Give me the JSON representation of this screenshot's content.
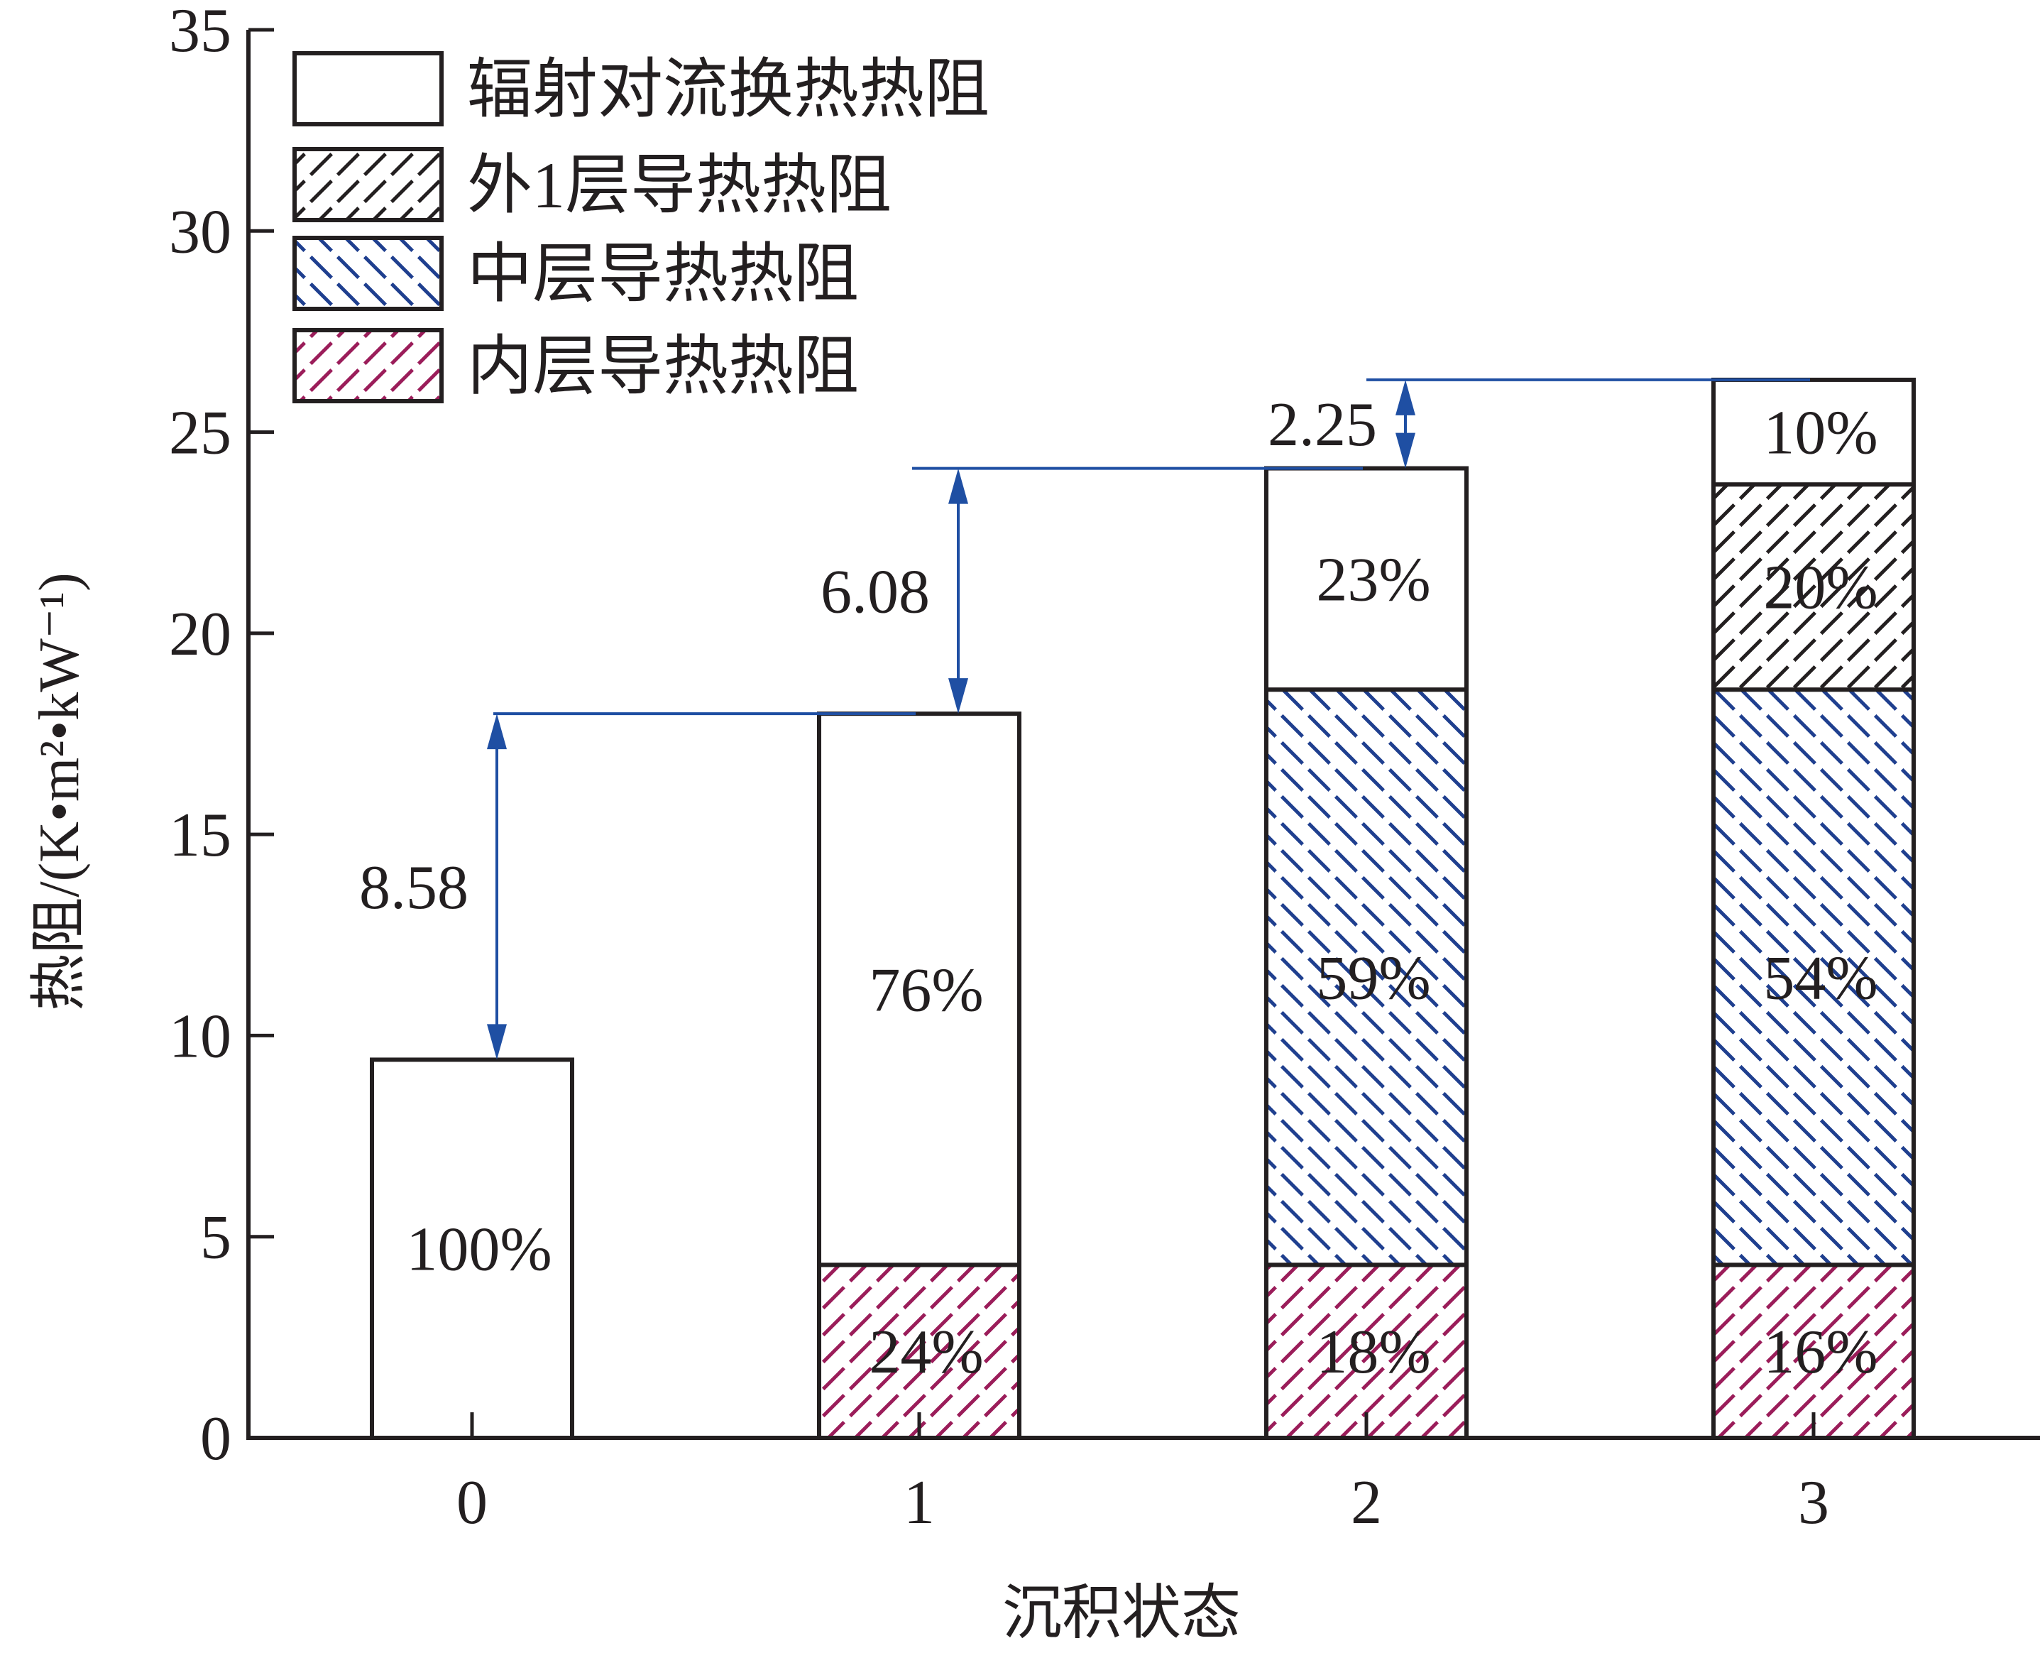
{
  "chart_data": {
    "type": "bar",
    "stacked": true,
    "categories": [
      "0",
      "1",
      "2",
      "3"
    ],
    "xlabel": "沉积状态",
    "ylabel": "热阻/(K•m²•kW⁻¹)",
    "ylim": [
      0,
      35
    ],
    "yticks": [
      "0",
      "5",
      "10",
      "15",
      "20",
      "25",
      "30",
      "35"
    ],
    "grid": false,
    "legend_position": "top-left",
    "series": [
      {
        "name": "内层导热热阻",
        "pattern": "forward-hatch",
        "color": "#9b1d5a",
        "values": [
          0,
          4.3,
          4.3,
          4.3
        ],
        "labels": [
          "",
          "24%",
          "18%",
          "16%"
        ]
      },
      {
        "name": "中层导热热阻",
        "pattern": "back-hatch",
        "color": "#1f3f8f",
        "values": [
          0,
          0,
          14.3,
          14.3
        ],
        "labels": [
          "",
          "",
          "59%",
          "54%"
        ]
      },
      {
        "name": "外1层导热热阻",
        "pattern": "forward-hatch",
        "color": "#231f20",
        "values": [
          0,
          0,
          0,
          5.1
        ],
        "labels": [
          "",
          "",
          "",
          "20%"
        ]
      },
      {
        "name": "辐射对流换热热阻",
        "pattern": "none",
        "color": "#ffffff",
        "values": [
          9.4,
          13.7,
          5.5,
          2.6
        ],
        "labels": [
          "100%",
          "76%",
          "23%",
          "10%"
        ]
      }
    ],
    "legend_order": [
      3,
      2,
      1,
      0
    ],
    "annotations": [
      {
        "label": "8.58",
        "from": 9.4,
        "to": 18.0,
        "category": 0
      },
      {
        "label": "6.08",
        "from": 18.0,
        "to": 24.1,
        "category": 1
      },
      {
        "label": "2.25",
        "from": 24.1,
        "to": 26.3,
        "category": 2
      }
    ],
    "annotation_color": "#1f4fa3"
  }
}
